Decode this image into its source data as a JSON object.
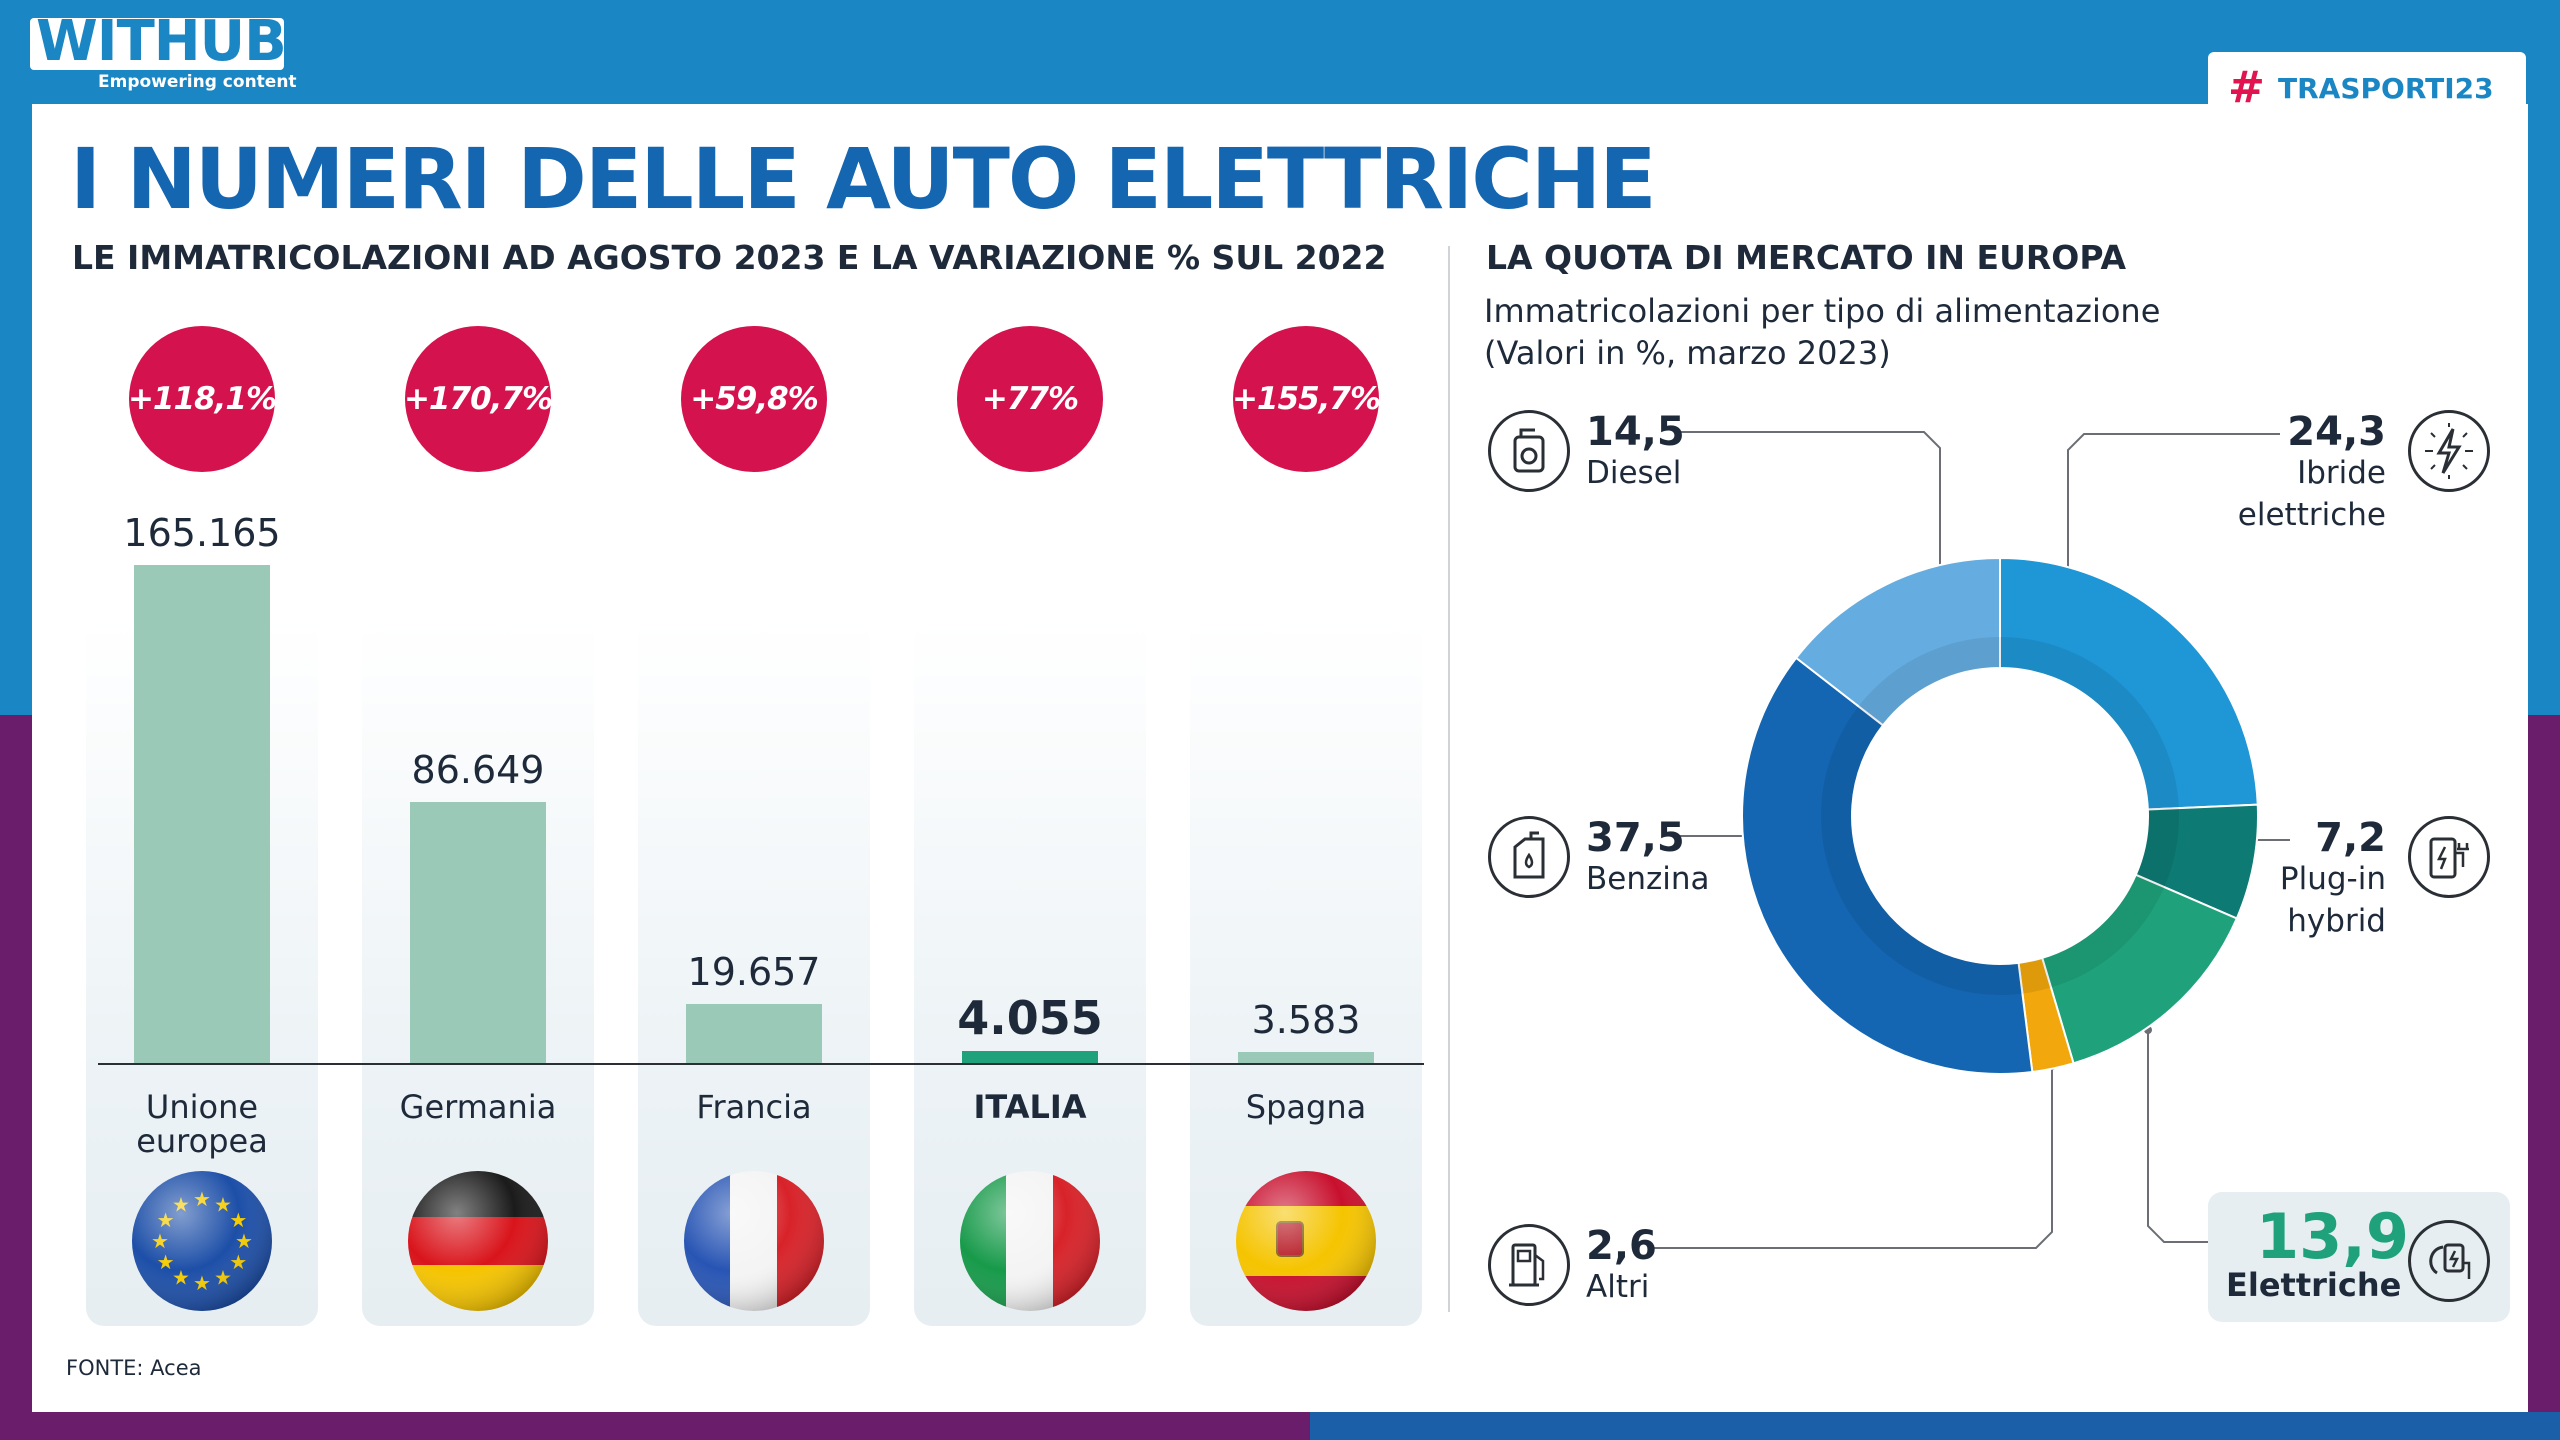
{
  "brand": {
    "name": "WITHUB",
    "tagline": "Empowering content",
    "partner_hash": "#",
    "partner": "TRASPORTI23"
  },
  "title": "I NUMERI DELLE AUTO ELETTRICHE",
  "left_subtitle": "LE IMMATRICOLAZIONI AD AGOSTO 2023 E LA VARIAZIONE % SUL 2022",
  "right_subtitle": "LA QUOTA DI MERCATO IN EUROPA",
  "right_desc": [
    "Immatricolazioni per tipo di alimentazione",
    "(Valori in %, marzo 2023)"
  ],
  "source": "FONTE: Acea",
  "colors": {
    "accent": "#d4124e",
    "bar": "#9ac9b7",
    "bar_highlight": "#1fa27b",
    "brand": "#1566b0"
  },
  "chart_data": [
    {
      "type": "bar",
      "title": "LE IMMATRICOLAZIONI AD AGOSTO 2023 E LA VARIAZIONE % SUL 2022",
      "categories": [
        "Unione europea",
        "Germania",
        "Francia",
        "ITALIA",
        "Spagna"
      ],
      "category_lines": [
        [
          "Unione",
          "europea"
        ],
        [
          "Germania"
        ],
        [
          "Francia"
        ],
        [
          "ITALIA"
        ],
        [
          "Spagna"
        ]
      ],
      "values": [
        165165,
        86649,
        19657,
        4055,
        3583
      ],
      "value_labels": [
        "165.165",
        "86.649",
        "19.657",
        "4.055",
        "3.583"
      ],
      "change_labels": [
        "+118,1%",
        "+170,7%",
        "+59,8%",
        "+77%",
        "+155,7%"
      ],
      "highlight": "ITALIA",
      "flags": [
        "eu-flag-icon",
        "germany-flag-icon",
        "france-flag-icon",
        "italy-flag-icon",
        "spain-flag-icon"
      ],
      "ylim": [
        0,
        165165
      ]
    },
    {
      "type": "pie",
      "title": "LA QUOTA DI MERCATO IN EUROPA",
      "slices": [
        {
          "label": "Ibride elettriche",
          "lines": [
            "Ibride",
            "elettriche"
          ],
          "value": 24.3,
          "value_label": "24,3",
          "color": "#1f96d6",
          "icon": "hybrid-bolt-icon"
        },
        {
          "label": "Plug-in hybrid",
          "lines": [
            "Plug-in",
            "hybrid"
          ],
          "value": 7.2,
          "value_label": "7,2",
          "color": "#0d7b73",
          "icon": "plug-in-pump-icon"
        },
        {
          "label": "Elettriche",
          "lines": [
            "Elettriche"
          ],
          "value": 13.9,
          "value_label": "13,9",
          "color": "#1fa27b",
          "icon": "ev-charger-icon"
        },
        {
          "label": "Altri",
          "lines": [
            "Altri"
          ],
          "value": 2.6,
          "value_label": "2,6",
          "color": "#f2a80c",
          "icon": "fuel-pump-icon"
        },
        {
          "label": "Benzina",
          "lines": [
            "Benzina"
          ],
          "value": 37.5,
          "value_label": "37,5",
          "color": "#1466b2",
          "icon": "petrol-can-icon"
        },
        {
          "label": "Diesel",
          "lines": [
            "Diesel"
          ],
          "value": 14.5,
          "value_label": "14,5",
          "color": "#65ade0",
          "icon": "diesel-can-icon"
        }
      ]
    }
  ]
}
